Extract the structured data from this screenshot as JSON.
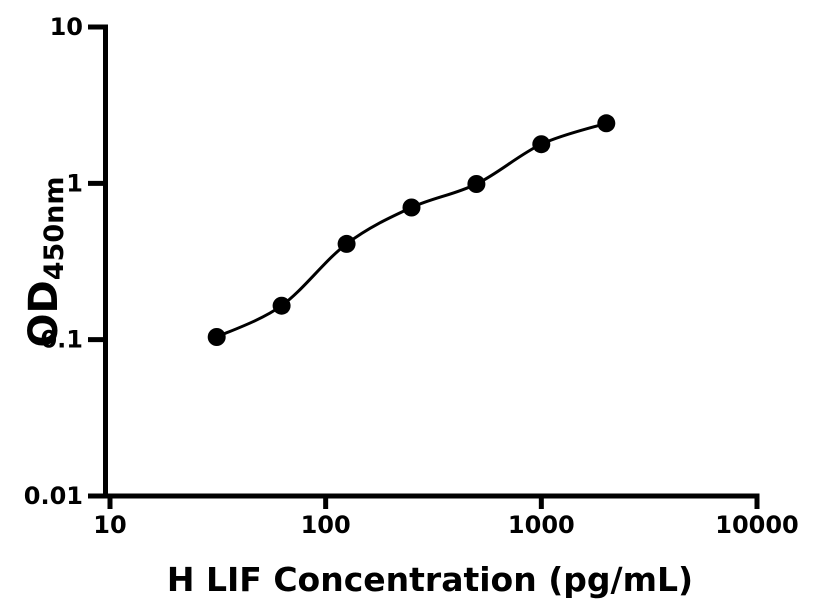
{
  "figure": {
    "background": "#ffffff",
    "foreground": "#000000"
  },
  "chart_data": {
    "type": "scatter",
    "title": "",
    "xlabel": "H LIF Concentration (pg/mL)",
    "ylabel_main": "OD",
    "ylabel_sub": "450nm",
    "xscale": "log",
    "yscale": "log",
    "xlim": [
      10,
      10000
    ],
    "ylim": [
      0.01,
      10
    ],
    "x": [
      31.25,
      62.5,
      125,
      250,
      500,
      1000,
      2000
    ],
    "y": [
      0.104,
      0.165,
      0.41,
      0.7,
      0.99,
      1.78,
      2.42
    ],
    "x_tick_values": [
      10,
      100,
      1000,
      10000
    ],
    "x_tick_labels": [
      "10",
      "100",
      "1000",
      "10000"
    ],
    "y_tick_values": [
      10,
      1,
      0.1,
      0.01
    ],
    "y_tick_labels": [
      "10",
      "1",
      "0.1",
      "0.01"
    ],
    "grid": false,
    "legend": null,
    "marker_color": "#000000",
    "line_color": "#000000",
    "marker_radius": 9,
    "line_width": 3
  }
}
